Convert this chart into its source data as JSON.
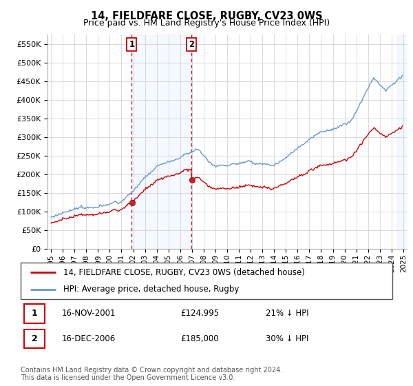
{
  "title": "14, FIELDFARE CLOSE, RUGBY, CV23 0WS",
  "subtitle": "Price paid vs. HM Land Registry's House Price Index (HPI)",
  "legend_line1": "14, FIELDFARE CLOSE, RUGBY, CV23 0WS (detached house)",
  "legend_line2": "HPI: Average price, detached house, Rugby",
  "transaction1_date": "16-NOV-2001",
  "transaction1_price": "£124,995",
  "transaction1_hpi": "21% ↓ HPI",
  "transaction2_date": "16-DEC-2006",
  "transaction2_price": "£185,000",
  "transaction2_hpi": "30% ↓ HPI",
  "footer": "Contains HM Land Registry data © Crown copyright and database right 2024.\nThis data is licensed under the Open Government Licence v3.0.",
  "ylim": [
    0,
    575000
  ],
  "yticks": [
    0,
    50000,
    100000,
    150000,
    200000,
    250000,
    300000,
    350000,
    400000,
    450000,
    500000,
    550000
  ],
  "ytick_labels": [
    "£0",
    "£50K",
    "£100K",
    "£150K",
    "£200K",
    "£250K",
    "£300K",
    "£350K",
    "£400K",
    "£450K",
    "£500K",
    "£550K"
  ],
  "property_color": "#cc0000",
  "hpi_color": "#6699cc",
  "vline_color": "#cc0000",
  "plot_bg": "#ffffff",
  "transaction1_x": 2001.88,
  "transaction2_x": 2006.96,
  "transaction1_y": 124995,
  "transaction2_y": 185000,
  "xmin": 1994.7,
  "xmax": 2025.3
}
